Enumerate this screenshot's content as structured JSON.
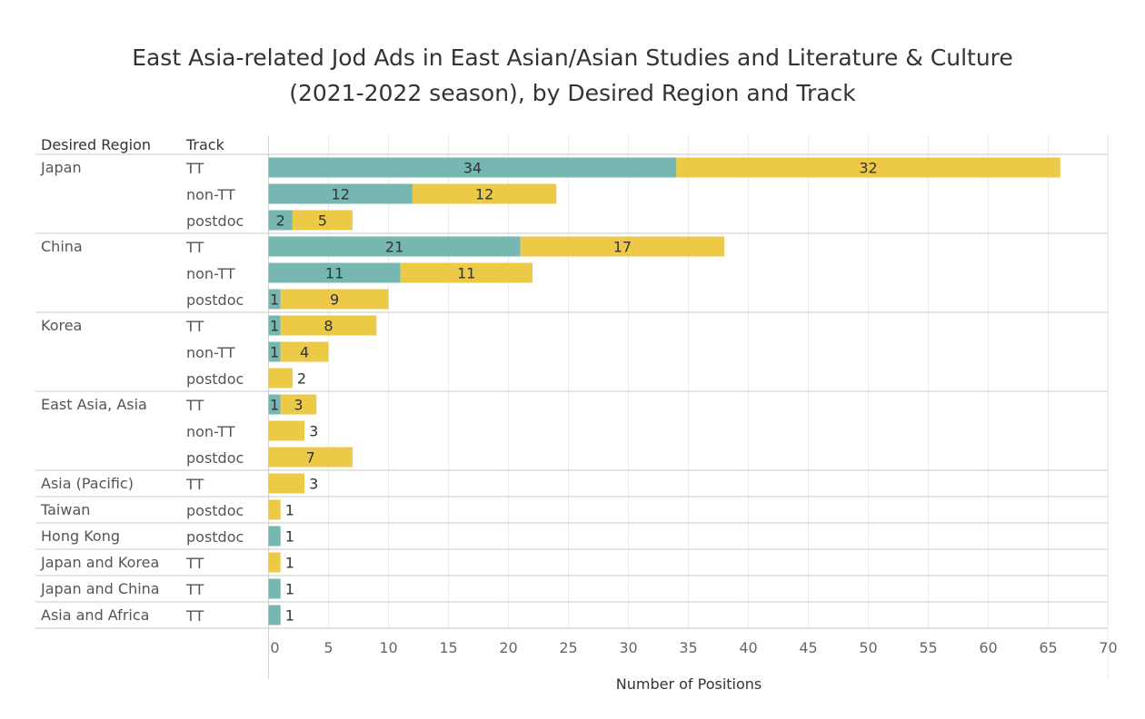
{
  "chart_data": {
    "type": "bar",
    "orientation": "horizontal",
    "stacked": true,
    "title": "East Asia-related Jod Ads in East Asian/Asian Studies and Literature & Culture\n(2021-2022 season), by Desired Region and Track",
    "row_headers": [
      "Desired Region",
      "Track"
    ],
    "xlabel": "Number of Positions",
    "xlim": [
      0,
      70
    ],
    "xticks": [
      0,
      5,
      10,
      15,
      20,
      25,
      30,
      35,
      40,
      45,
      50,
      55,
      60,
      65,
      70
    ],
    "grid": true,
    "legend": "none",
    "colors": [
      "#76b7b2",
      "#edc948"
    ],
    "groups": [
      {
        "region": "Japan",
        "rows": [
          {
            "track": "TT",
            "values": [
              34,
              32
            ]
          },
          {
            "track": "non-TT",
            "values": [
              12,
              12
            ]
          },
          {
            "track": "postdoc",
            "values": [
              2,
              5
            ]
          }
        ]
      },
      {
        "region": "China",
        "rows": [
          {
            "track": "TT",
            "values": [
              21,
              17
            ]
          },
          {
            "track": "non-TT",
            "values": [
              11,
              11
            ]
          },
          {
            "track": "postdoc",
            "values": [
              1,
              9
            ]
          }
        ]
      },
      {
        "region": "Korea",
        "rows": [
          {
            "track": "TT",
            "values": [
              1,
              8
            ]
          },
          {
            "track": "non-TT",
            "values": [
              1,
              4
            ]
          },
          {
            "track": "postdoc",
            "values": [
              0,
              2
            ]
          }
        ]
      },
      {
        "region": "East Asia, Asia",
        "rows": [
          {
            "track": "TT",
            "values": [
              1,
              3
            ]
          },
          {
            "track": "non-TT",
            "values": [
              0,
              3
            ]
          },
          {
            "track": "postdoc",
            "values": [
              0,
              7
            ]
          }
        ]
      },
      {
        "region": "Asia (Pacific)",
        "rows": [
          {
            "track": "TT",
            "values": [
              0,
              3
            ]
          }
        ]
      },
      {
        "region": "Taiwan",
        "rows": [
          {
            "track": "postdoc",
            "values": [
              0,
              1
            ]
          }
        ]
      },
      {
        "region": "Hong Kong",
        "rows": [
          {
            "track": "postdoc",
            "values": [
              1,
              0
            ]
          }
        ]
      },
      {
        "region": "Japan and Korea",
        "rows": [
          {
            "track": "TT",
            "values": [
              0,
              1
            ]
          }
        ]
      },
      {
        "region": "Japan and China",
        "rows": [
          {
            "track": "TT",
            "values": [
              1,
              0
            ]
          }
        ]
      },
      {
        "region": "Asia and Africa",
        "rows": [
          {
            "track": "TT",
            "values": [
              1,
              0
            ]
          }
        ]
      }
    ]
  }
}
